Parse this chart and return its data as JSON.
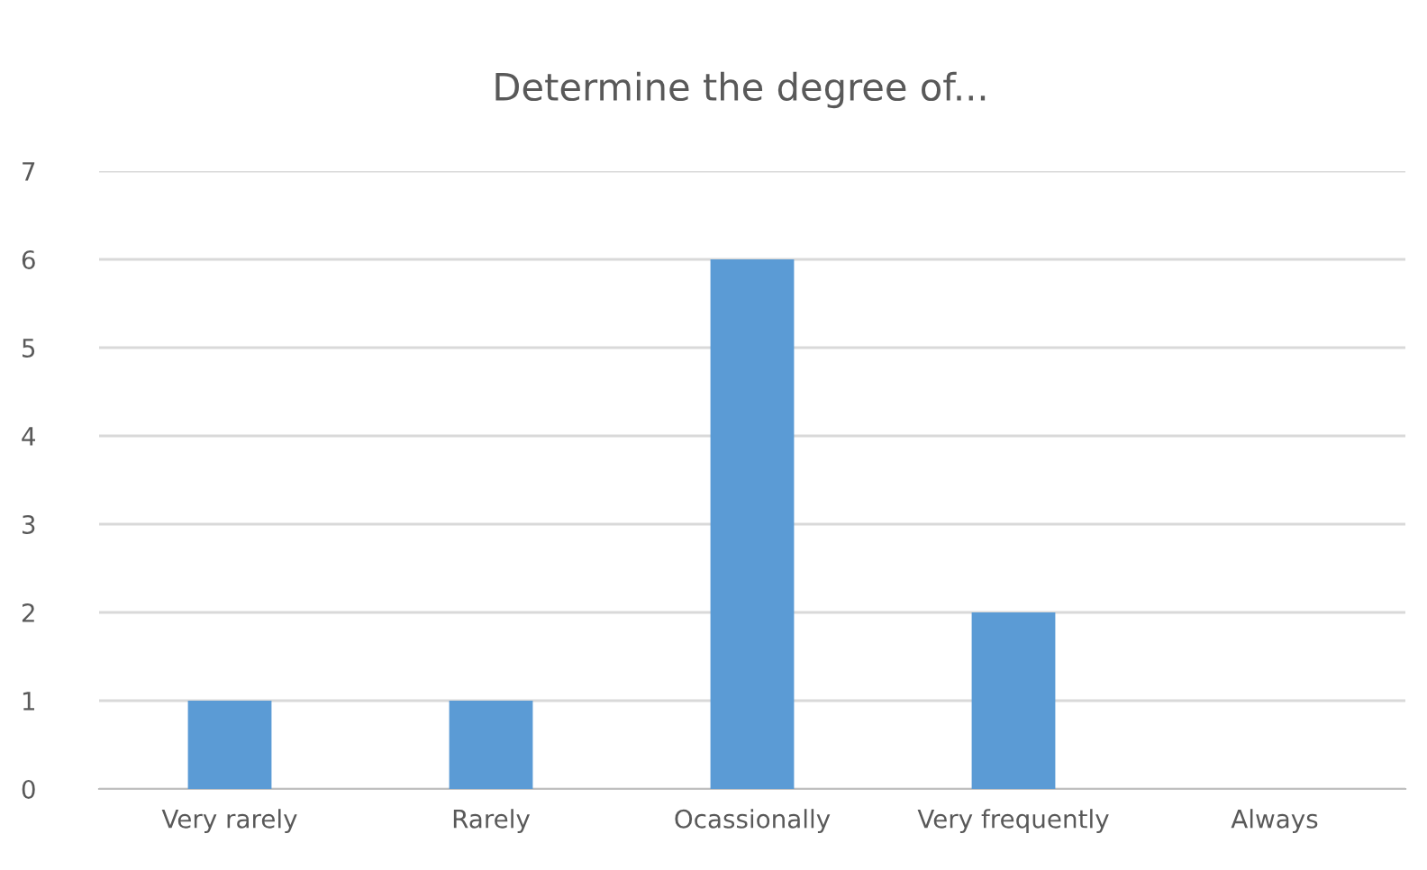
{
  "chart_data": {
    "type": "bar",
    "title": "Determine the degree of...",
    "categories": [
      "Very rarely",
      "Rarely",
      "Ocassionally",
      "Very frequently",
      "Always"
    ],
    "values": [
      1,
      1,
      6,
      2,
      0
    ],
    "color": "#5b9bd5",
    "ylim": [
      0,
      7
    ],
    "yticks": [
      0,
      1,
      2,
      3,
      4,
      5,
      6,
      7
    ],
    "grid": "y",
    "legend": false
  }
}
